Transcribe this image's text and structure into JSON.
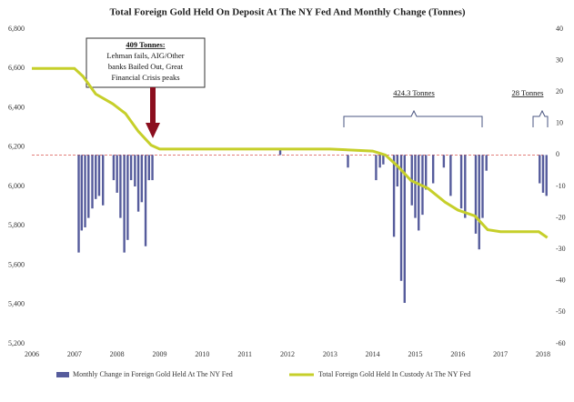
{
  "chart_data": {
    "type": "bar-line",
    "title": "Total Foreign Gold Held On Deposit At The NY Fed And Monthly Change (Tonnes)",
    "xlim": [
      2006,
      2018
    ],
    "xticks": [
      2006,
      2007,
      2008,
      2009,
      2010,
      2011,
      2012,
      2013,
      2014,
      2015,
      2016,
      2017,
      2018
    ],
    "ylim": [
      5200,
      6800
    ],
    "yticks": [
      {
        "value": 5200,
        "label": "5,200"
      },
      {
        "value": 5400,
        "label": "5,400"
      },
      {
        "value": 5600,
        "label": "5,600"
      },
      {
        "value": 5800,
        "label": "5,800"
      },
      {
        "value": 6000,
        "label": "6,000"
      },
      {
        "value": 6200,
        "label": "6,200"
      },
      {
        "value": 6400,
        "label": "6,400"
      },
      {
        "value": 6600,
        "label": "6,600"
      },
      {
        "value": 6800,
        "label": "6,800"
      }
    ],
    "y2lim": [
      -60,
      40
    ],
    "y2ticks": [
      -60,
      -50,
      -40,
      -30,
      -20,
      -10,
      0,
      10,
      20,
      30,
      40
    ],
    "zero_line_color": "#d9534f",
    "series": [
      {
        "name": "Monthly Change in Foreign Gold Held At The NY Fed",
        "color": "#565c9c",
        "axis": "y2",
        "x": [
          2007.1,
          2007.17,
          2007.25,
          2007.33,
          2007.42,
          2007.5,
          2007.58,
          2007.67,
          2007.92,
          2008.0,
          2008.08,
          2008.17,
          2008.25,
          2008.33,
          2008.42,
          2008.5,
          2008.58,
          2008.67,
          2008.75,
          2008.83,
          2011.83,
          2013.42,
          2014.08,
          2014.17,
          2014.25,
          2014.5,
          2014.58,
          2014.67,
          2014.75,
          2014.92,
          2015.0,
          2015.08,
          2015.17,
          2015.25,
          2015.42,
          2015.67,
          2015.83,
          2016.08,
          2016.17,
          2016.42,
          2016.5,
          2016.58,
          2016.67,
          2017.92,
          2018.0,
          2018.08
        ],
        "values": [
          -31,
          -24,
          -23,
          -20,
          -17,
          -14,
          -13,
          -16,
          -8,
          -12,
          -20,
          -31,
          -27,
          -8,
          -10,
          -18,
          -15,
          -29,
          -8,
          -8,
          2,
          -4,
          -8,
          -4,
          -3,
          -26,
          -10,
          -40,
          -47,
          -16,
          -20,
          -24,
          -19,
          -11,
          -9,
          -4,
          -13,
          -17,
          -20,
          -25,
          -30,
          -20,
          -5,
          -9,
          -12,
          -13
        ]
      },
      {
        "name": "Total Foreign Gold Held In Custody At The NY Fed",
        "color": "#c6cf2a",
        "axis": "y",
        "x": [
          2006,
          2007,
          2007.2,
          2007.5,
          2007.9,
          2008.2,
          2008.5,
          2008.8,
          2009,
          2012,
          2013,
          2014,
          2014.3,
          2014.6,
          2014.9,
          2015.3,
          2015.7,
          2016,
          2016.4,
          2016.7,
          2017,
          2017.9,
          2018.1
        ],
        "values": [
          6600,
          6600,
          6560,
          6470,
          6420,
          6370,
          6280,
          6210,
          6190,
          6190,
          6190,
          6180,
          6160,
          6100,
          6030,
          5990,
          5920,
          5880,
          5850,
          5780,
          5770,
          5770,
          5740
        ]
      }
    ],
    "annotations": [
      "409 Tonnes:",
      "Lehman fails, AIG/Other",
      "banks Bailed Out, Great",
      "Financial Crisis peaks",
      "424.3 Tonnes",
      "28 Tonnes"
    ]
  }
}
